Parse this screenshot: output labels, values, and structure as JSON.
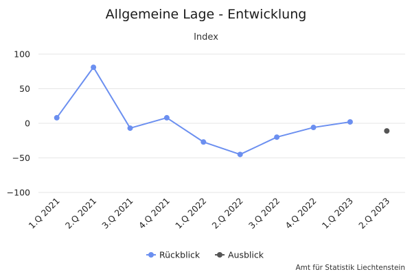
{
  "chart_data": {
    "type": "line",
    "title": "Allgemeine Lage - Entwicklung",
    "subtitle": "Index",
    "categories": [
      "1.Q 2021",
      "2.Q 2021",
      "3.Q 2021",
      "4.Q 2021",
      "1.Q 2022",
      "2.Q 2022",
      "3.Q 2022",
      "4.Q 2022",
      "1.Q 2023",
      "2.Q 2023"
    ],
    "ylim": [
      -100,
      100
    ],
    "yticks": [
      100,
      50,
      0,
      -50,
      -100
    ],
    "ytick_labels": [
      "100",
      "50",
      "0",
      "−50",
      "−100"
    ],
    "grid": true,
    "legend_placement": "bottom-center",
    "series": [
      {
        "name": "Rückblick",
        "color": "#6b8ff0",
        "line": true,
        "values": [
          8,
          81,
          -7,
          8,
          -27,
          -45,
          -20,
          -6,
          2,
          null
        ]
      },
      {
        "name": "Ausblick",
        "color": "#555555",
        "line": false,
        "values": [
          null,
          null,
          null,
          null,
          null,
          null,
          null,
          null,
          null,
          -11
        ]
      }
    ],
    "credit": "Amt für Statistik Liechtenstein"
  }
}
